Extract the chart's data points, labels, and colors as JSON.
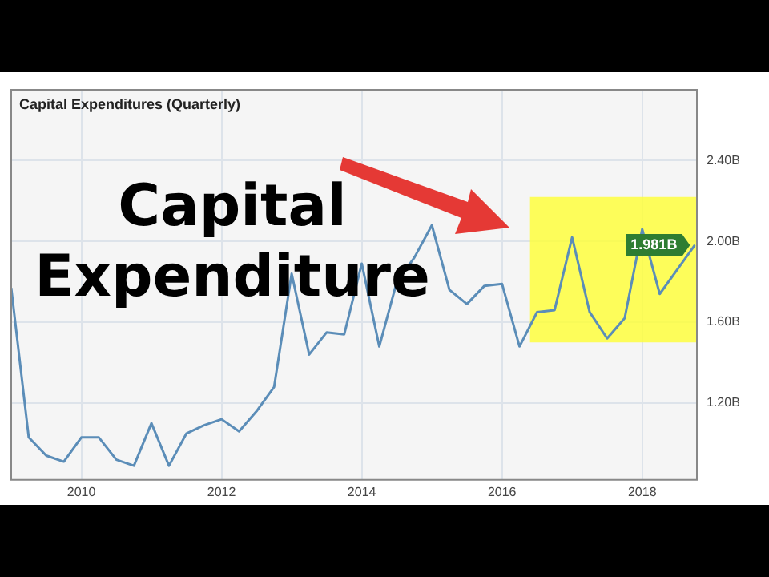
{
  "chart_data": {
    "type": "line",
    "title": "Capital Expenditures (Quarterly)",
    "x": [
      2009,
      2009.25,
      2009.5,
      2009.75,
      2010,
      2010.25,
      2010.5,
      2010.75,
      2011,
      2011.25,
      2011.5,
      2011.75,
      2012,
      2012.25,
      2012.5,
      2012.75,
      2013,
      2013.25,
      2013.5,
      2013.75,
      2014,
      2014.25,
      2014.5,
      2014.75,
      2015,
      2015.25,
      2015.5,
      2015.75,
      2016,
      2016.25,
      2016.5,
      2016.75,
      2017,
      2017.25,
      2017.5,
      2017.75,
      2018,
      2018.25,
      2018.5,
      2018.75
    ],
    "series": [
      {
        "color": "#5b8db8",
        "values": [
          1.77,
          1.03,
          0.94,
          0.91,
          1.03,
          1.03,
          0.92,
          0.89,
          1.1,
          0.89,
          1.05,
          1.09,
          1.12,
          1.06,
          1.16,
          1.28,
          1.84,
          1.44,
          1.55,
          1.54,
          1.89,
          1.48,
          1.8,
          1.92,
          2.08,
          1.76,
          1.69,
          1.78,
          1.79,
          1.48,
          1.65,
          1.66,
          2.02,
          1.65,
          1.52,
          1.62,
          2.06,
          1.74,
          1.86,
          1.981
        ]
      }
    ],
    "xlim": [
      2009,
      2018.78
    ],
    "xticks": [
      2010,
      2012,
      2014,
      2016,
      2018
    ],
    "ylim": [
      0.82,
      2.75
    ],
    "yticks": [
      {
        "value": 1.2,
        "label": "1.20B"
      },
      {
        "value": 1.6,
        "label": "1.60B"
      },
      {
        "value": 2.0,
        "label": "2.00B"
      },
      {
        "value": 2.4,
        "label": "2.40B"
      }
    ],
    "grid": true,
    "legend": false,
    "marker": "none",
    "line_style": "solid",
    "bands": [
      {
        "axis": "x",
        "from": 2016.4,
        "to": 2018.78,
        "color": "#ffff33"
      }
    ],
    "annotations": [
      "Capital Expenditure",
      {
        "text": "1.981B",
        "x": 2018.75,
        "y": 1.981
      }
    ]
  }
}
